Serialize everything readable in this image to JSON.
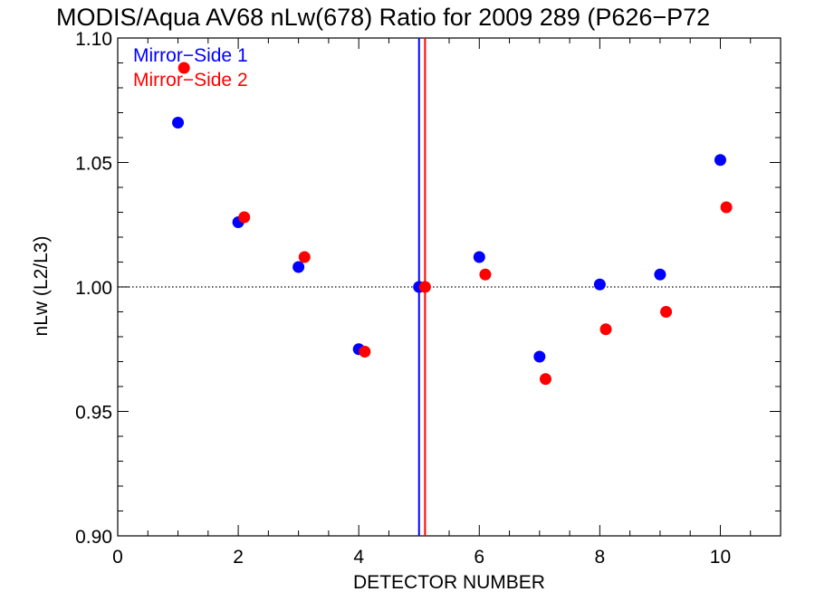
{
  "chart_data": {
    "type": "scatter",
    "title": "MODIS/Aqua AV68 nLw(678) Ratio for 2009 289 (P626−P72",
    "xlabel": "DETECTOR NUMBER",
    "ylabel": "nLw (L2/L3)",
    "xlim": [
      0,
      11
    ],
    "ylim": [
      0.9,
      1.1
    ],
    "x_ticks": [
      0,
      2,
      4,
      6,
      8,
      10
    ],
    "y_ticks": [
      0.9,
      0.95,
      1.0,
      1.05,
      1.1
    ],
    "x_tick_labels": [
      "0",
      "2",
      "4",
      "6",
      "8",
      "10"
    ],
    "y_tick_labels": [
      "0.90",
      "0.95",
      "1.00",
      "1.05",
      "1.10"
    ],
    "reference_line_y": 1.0,
    "legend_placement": "top-left",
    "series": [
      {
        "name": "Mirror−Side 1",
        "color": "#0000ff",
        "x": [
          1,
          2,
          3,
          4,
          5,
          6,
          7,
          8,
          9,
          10
        ],
        "y": [
          1.066,
          1.026,
          1.008,
          0.975,
          1.0,
          1.012,
          0.972,
          1.001,
          1.005,
          1.051
        ],
        "vertical_line_x": 5.0
      },
      {
        "name": "Mirror−Side 2",
        "color": "#ff0000",
        "x": [
          1.1,
          2.1,
          3.1,
          4.1,
          5.1,
          6.1,
          7.1,
          8.1,
          9.1,
          10.1
        ],
        "y": [
          1.088,
          1.028,
          1.012,
          0.974,
          1.0,
          1.005,
          0.963,
          0.983,
          0.99,
          1.032
        ],
        "vertical_line_x": 5.1
      }
    ]
  }
}
